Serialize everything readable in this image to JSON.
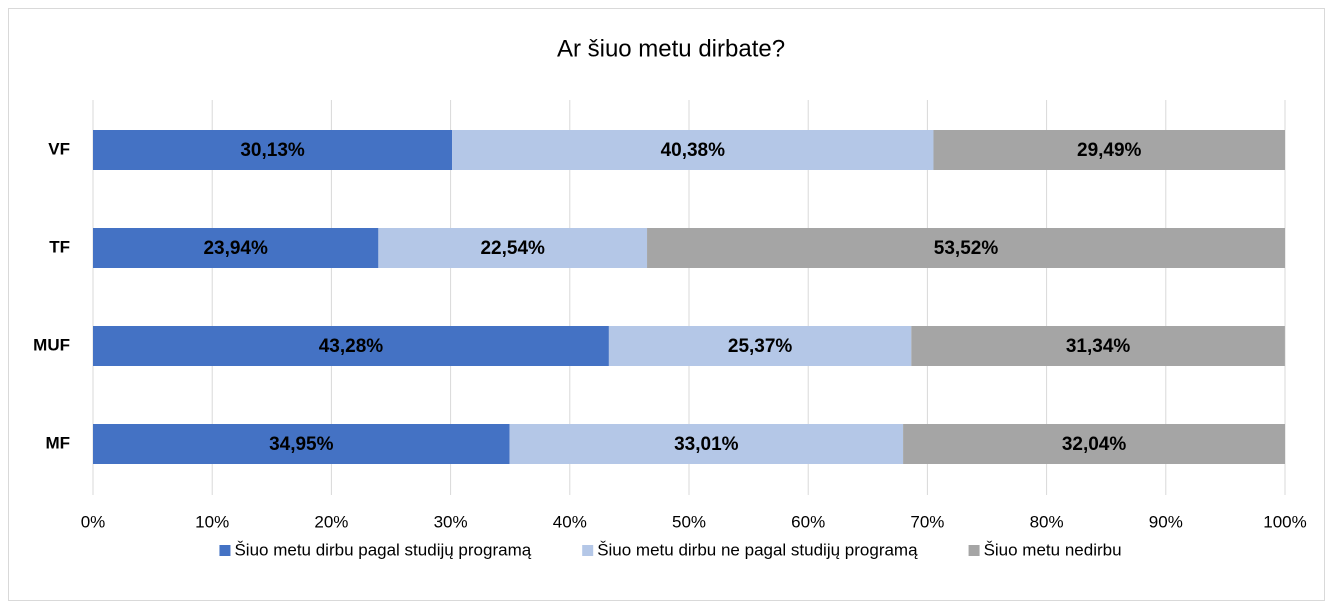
{
  "chart_data": {
    "type": "stacked_barh",
    "title": "Ar šiuo metu dirbate?",
    "categories": [
      "VF",
      "TF",
      "MUF",
      "MF"
    ],
    "series": [
      {
        "name": "Šiuo metu dirbu pagal studijų programą",
        "color": "#4472c4",
        "values": [
          30.13,
          23.94,
          43.28,
          34.95
        ],
        "value_labels": [
          "30,13%",
          "23,94%",
          "43,28%",
          "34,95%"
        ]
      },
      {
        "name": "Šiuo metu dirbu ne pagal studijų programą",
        "color": "#b4c7e7",
        "values": [
          40.38,
          22.54,
          25.37,
          33.01
        ],
        "value_labels": [
          "40,38%",
          "22,54%",
          "25,37%",
          "33,01%"
        ]
      },
      {
        "name": "Šiuo metu nedirbu",
        "color": "#a5a5a5",
        "values": [
          29.49,
          53.52,
          31.34,
          32.04
        ],
        "value_labels": [
          "29,49%",
          "53,52%",
          "31,34%",
          "32,04%"
        ]
      }
    ],
    "xlim": [
      0,
      100
    ],
    "xticks": [
      {
        "value": 0,
        "label": "0%"
      },
      {
        "value": 10,
        "label": "10%"
      },
      {
        "value": 20,
        "label": "20%"
      },
      {
        "value": 30,
        "label": "30%"
      },
      {
        "value": 40,
        "label": "40%"
      },
      {
        "value": 50,
        "label": "50%"
      },
      {
        "value": 60,
        "label": "60%"
      },
      {
        "value": 70,
        "label": "70%"
      },
      {
        "value": 80,
        "label": "80%"
      },
      {
        "value": 90,
        "label": "90%"
      },
      {
        "value": 100,
        "label": "100%"
      }
    ],
    "grid": true,
    "legend": "bottom"
  }
}
